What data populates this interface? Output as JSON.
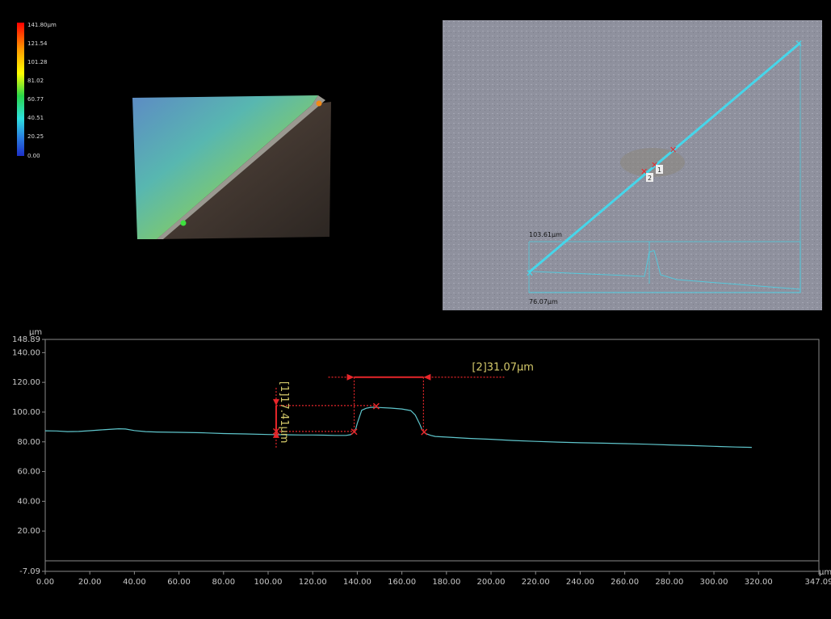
{
  "colors": {
    "profile_line": "#5fc6cc",
    "marker": "#e8262a",
    "annotation_text": "#d4c96a",
    "axis_text": "#c8c8c8",
    "scan_line": "#46d6ea"
  },
  "height_map_legend": {
    "labels": [
      "141.80µm",
      "121.54",
      "101.28",
      "81.02",
      "60.77",
      "40.51",
      "20.25",
      "0.00"
    ]
  },
  "top_view": {
    "scan_markers": [
      "1",
      "2"
    ],
    "width_label": "103.61µm",
    "height_label": "76.07µm"
  },
  "chart_data": {
    "type": "line",
    "xlabel": "µm",
    "ylabel": "µm",
    "xlim": [
      0.0,
      347.09
    ],
    "ylim": [
      -7.09,
      148.89
    ],
    "x_ticks": [
      "0.00",
      "20.00",
      "40.00",
      "60.00",
      "80.00",
      "100.00",
      "120.00",
      "140.00",
      "160.00",
      "180.00",
      "200.00",
      "220.00",
      "240.00",
      "260.00",
      "280.00",
      "300.00",
      "320.00",
      "347.09"
    ],
    "x_tick_values": [
      0,
      20,
      40,
      60,
      80,
      100,
      120,
      140,
      160,
      180,
      200,
      220,
      240,
      260,
      280,
      300,
      320,
      347.09
    ],
    "y_ticks": [
      "148.89",
      "140.00",
      "120.00",
      "100.00",
      "80.00",
      "60.00",
      "40.00",
      "20.00",
      "-7.09"
    ],
    "y_tick_values": [
      148.89,
      140,
      120,
      100,
      80,
      60,
      40,
      20,
      -7.09
    ],
    "grid": false,
    "series": [
      {
        "x": [
          0,
          5,
          10,
          15,
          20,
          25,
          30,
          33,
          36,
          40,
          45,
          50,
          60,
          70,
          80,
          90,
          100,
          110,
          115,
          120,
          125,
          130,
          135,
          137,
          139,
          140,
          142,
          144,
          146,
          148,
          150,
          155,
          160,
          164,
          166,
          168,
          169,
          170,
          171,
          173,
          175,
          180,
          190,
          200,
          210,
          220,
          230,
          240,
          250,
          260,
          270,
          280,
          290,
          300,
          310,
          317
        ],
        "y": [
          87.4,
          87.3,
          86.9,
          87.0,
          87.5,
          88.0,
          88.5,
          88.8,
          88.6,
          87.6,
          86.9,
          86.6,
          86.4,
          86.1,
          85.6,
          85.3,
          84.9,
          84.7,
          84.6,
          84.6,
          84.5,
          84.3,
          84.3,
          84.8,
          87.0,
          92.5,
          101.2,
          102.6,
          103.2,
          103.3,
          103.1,
          102.7,
          102.1,
          101.0,
          98.0,
          92.0,
          88.3,
          86.2,
          85.4,
          84.3,
          83.6,
          83.2,
          82.3,
          81.7,
          80.9,
          80.3,
          79.8,
          79.4,
          79.1,
          78.8,
          78.4,
          77.9,
          77.5,
          77.0,
          76.5,
          76.3
        ]
      }
    ],
    "markers": [
      {
        "x": 103.6,
        "y": 87.0
      },
      {
        "x": 138.6,
        "y": 86.8
      },
      {
        "x": 148.5,
        "y": 104.0
      },
      {
        "x": 170.0,
        "y": 86.6
      }
    ],
    "annotations": [
      {
        "id": "[1]",
        "label": "[1]17.41µm",
        "type": "height",
        "x": 103.6,
        "y_from": 87.0,
        "y_to": 104.4
      },
      {
        "id": "[2]",
        "label": "[2]31.07µm",
        "type": "width",
        "x_from": 138.6,
        "x_to": 169.7,
        "y": 123.5
      }
    ]
  }
}
